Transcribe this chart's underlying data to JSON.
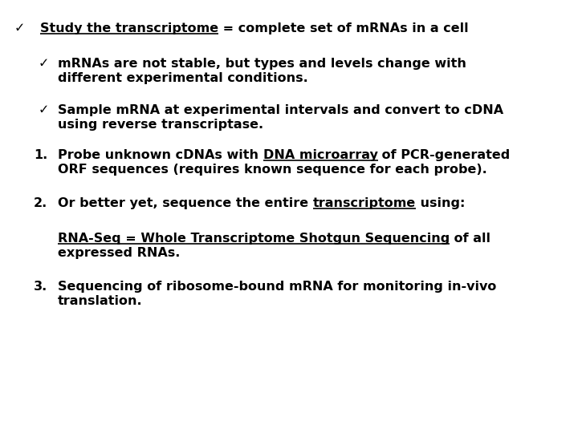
{
  "bg_color": "#ffffff",
  "text_color": "#000000",
  "font_size": 11.5,
  "figsize": [
    7.2,
    5.4
  ],
  "dpi": 100,
  "title_check": "✓",
  "title_underline": "Study the transcriptome",
  "title_rest": " = complete set of mRNAs in a cell",
  "b1_check": "✓",
  "b1_l1": "mRNAs are not stable, but types and levels change with",
  "b1_l2": "different experimental conditions.",
  "b2_check": "✓",
  "b2_l1": "Sample mRNA at experimental intervals and convert to cDNA",
  "b2_l2": "using reverse transcriptase.",
  "n1_label": "1.",
  "n1_before": "Probe unknown cDNAs with ",
  "n1_ul": "DNA microarray",
  "n1_after": " of PCR-generated",
  "n1_l2": "ORF sequences (requires known sequence for each probe).",
  "n2_label": "2.",
  "n2_before": "Or better yet, sequence the entire ",
  "n2_ul": "transcriptome",
  "n2_after": " using:",
  "n2_sub_ul": "RNA-Seq = Whole Transcriptome Shotgun Sequencing",
  "n2_sub_after": " of all",
  "n2_sub_l2": "expressed RNAs.",
  "n3_label": "3.",
  "n3_l1": "Sequencing of ribosome-bound mRNA for monitoring in-vivo",
  "n3_l2": "translation."
}
